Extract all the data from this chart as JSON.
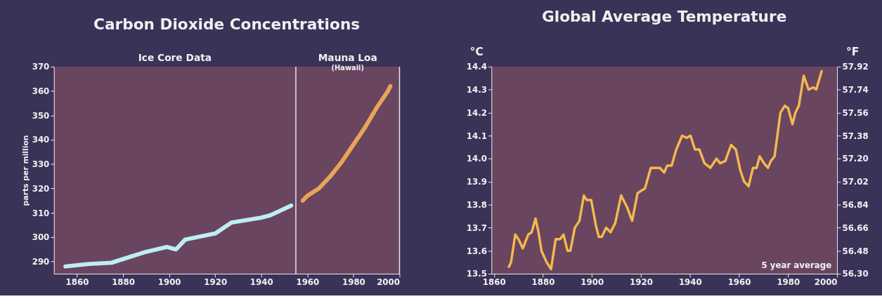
{
  "chart_data": [
    {
      "type": "line",
      "title": "Carbon Dioxide Concentrations",
      "ylabel": "parts per million",
      "xlim": [
        1850,
        2000
      ],
      "xticks": [
        1860,
        1880,
        1900,
        1920,
        1940,
        1960,
        1980,
        2000
      ],
      "ylim": [
        285,
        370
      ],
      "yticks": [
        290,
        300,
        310,
        320,
        330,
        340,
        350,
        360,
        370
      ],
      "grid": false,
      "series": [
        {
          "color": "#bdeef2",
          "x": [
            1855,
            1865,
            1875,
            1880,
            1890,
            1899,
            1903,
            1907,
            1920,
            1927,
            1940,
            1944,
            1953
          ],
          "values": [
            288,
            289,
            289.5,
            291,
            294,
            296,
            295,
            299,
            301.5,
            306,
            308,
            309,
            313
          ]
        },
        {
          "color": "#e9a458",
          "x": [
            1958,
            1960,
            1965,
            1970,
            1975,
            1980,
            1985,
            1990,
            1995,
            1996
          ],
          "values": [
            315,
            317,
            320,
            325,
            331,
            338,
            345,
            353,
            360,
            362
          ]
        }
      ],
      "ref_lines": [
        {
          "axis": "x",
          "value": 1955,
          "color": "#e8e8e8"
        },
        {
          "axis": "x",
          "value": 2000,
          "color": "#e8e8e8"
        }
      ],
      "annotations": [
        "Ice Core Data",
        "Mauna Loa",
        "(Hawaii)"
      ]
    },
    {
      "type": "line",
      "title": "Global Average Temperature",
      "ylabel": "°C",
      "y2label": "°F",
      "xlim": [
        1859,
        2000
      ],
      "xticks": [
        1860,
        1880,
        1900,
        1920,
        1940,
        1960,
        1980,
        2000
      ],
      "ylim": [
        13.5,
        14.4
      ],
      "yticks": [
        {
          "value": 13.5,
          "label": "13.5"
        },
        13.6,
        13.7,
        13.8,
        13.9,
        {
          "value": 14.0,
          "label": "14.0"
        },
        14.1,
        14.2,
        14.3,
        14.4
      ],
      "y2lim": [
        56.3,
        57.92
      ],
      "y2ticks": [
        {
          "value": 56.3,
          "label": "56.30"
        },
        56.48,
        56.66,
        56.84,
        57.02,
        {
          "value": 57.2,
          "label": "57.20"
        },
        57.38,
        57.56,
        57.74,
        57.92
      ],
      "grid": false,
      "series": [
        {
          "color": "#f3b94c",
          "x": [
            1866.1,
            1867,
            1868.7,
            1870,
            1871.8,
            1874,
            1875.4,
            1877,
            1878.2,
            1879.4,
            1881.5,
            1883.3,
            1885.2,
            1887,
            1888.4,
            1890,
            1891.2,
            1893,
            1894.9,
            1896.7,
            1897.9,
            1899.7,
            1901.6,
            1902.8,
            1904,
            1905.8,
            1907.6,
            1909.5,
            1911.9,
            1914.3,
            1916.4,
            1918.6,
            1920,
            1921.6,
            1924,
            1925.9,
            1927.7,
            1929.5,
            1930.7,
            1932.5,
            1934.4,
            1936.8,
            1938.6,
            1940.2,
            1942,
            1943.8,
            1945.9,
            1948.3,
            1950.8,
            1952.3,
            1954.4,
            1956.8,
            1958.7,
            1960.5,
            1962.1,
            1963.9,
            1965.7,
            1967.2,
            1968.4,
            1970.2,
            1971.8,
            1973,
            1974.5,
            1976.9,
            1978.7,
            1980,
            1981.8,
            1983,
            1984.4,
            1986.4,
            1988.4,
            1990.3,
            1991.5,
            1993.7
          ],
          "values": [
            13.53,
            13.55,
            13.67,
            13.65,
            13.61,
            13.67,
            13.68,
            13.74,
            13.68,
            13.6,
            13.55,
            13.52,
            13.65,
            13.65,
            13.67,
            13.6,
            13.6,
            13.7,
            13.73,
            13.84,
            13.82,
            13.82,
            13.71,
            13.66,
            13.66,
            13.7,
            13.68,
            13.72,
            13.84,
            13.79,
            13.73,
            13.85,
            13.86,
            13.87,
            13.96,
            13.96,
            13.96,
            13.94,
            13.97,
            13.97,
            14.04,
            14.1,
            14.09,
            14.1,
            14.04,
            14.04,
            13.98,
            13.96,
            14.0,
            13.98,
            13.99,
            14.06,
            14.04,
            13.95,
            13.9,
            13.88,
            13.96,
            13.96,
            14.01,
            13.98,
            13.96,
            13.99,
            14.01,
            14.2,
            14.23,
            14.22,
            14.15,
            14.2,
            14.23,
            14.36,
            14.3,
            14.31,
            14.3,
            14.38
          ]
        }
      ],
      "annotations": [
        "5 year average"
      ]
    }
  ]
}
